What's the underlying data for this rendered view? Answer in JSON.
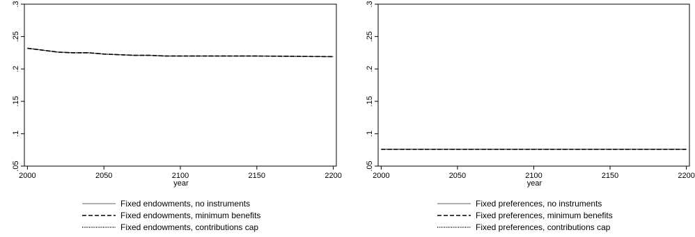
{
  "chart_data": [
    {
      "type": "line",
      "title": "",
      "xlabel": "year",
      "ylabel": "",
      "xlim": [
        1998,
        2202
      ],
      "ylim": [
        0.05,
        0.3
      ],
      "xticks": [
        2000,
        2050,
        2100,
        2150,
        2200
      ],
      "yticks": [
        0.05,
        0.1,
        0.15,
        0.2,
        0.25,
        0.3
      ],
      "yticklabels": [
        ".05",
        ".1",
        ".15",
        ".2",
        ".25",
        ".3"
      ],
      "grid": false,
      "legend_position": "bottom",
      "series": [
        {
          "name": "Fixed endowments, no instruments",
          "style": "solid",
          "color": "#808080",
          "x": [
            2000,
            2010,
            2020,
            2030,
            2040,
            2050,
            2060,
            2070,
            2080,
            2090,
            2100,
            2150,
            2200
          ],
          "y": [
            0.232,
            0.229,
            0.226,
            0.225,
            0.225,
            0.223,
            0.222,
            0.221,
            0.221,
            0.22,
            0.22,
            0.22,
            0.219
          ]
        },
        {
          "name": "Fixed endowments, minimum benefits",
          "style": "dashed",
          "color": "#000000",
          "x": [
            2000,
            2010,
            2020,
            2030,
            2040,
            2050,
            2060,
            2070,
            2080,
            2090,
            2100,
            2150,
            2200
          ],
          "y": [
            0.232,
            0.229,
            0.226,
            0.225,
            0.225,
            0.223,
            0.222,
            0.221,
            0.221,
            0.22,
            0.22,
            0.22,
            0.219
          ]
        },
        {
          "name": "Fixed endowments, contributions cap",
          "style": "dotted",
          "color": "#000000",
          "x": [
            2000,
            2010,
            2020,
            2030,
            2040,
            2050,
            2060,
            2070,
            2080,
            2090,
            2100,
            2150,
            2200
          ],
          "y": [
            0.232,
            0.229,
            0.226,
            0.225,
            0.225,
            0.223,
            0.222,
            0.221,
            0.221,
            0.22,
            0.22,
            0.22,
            0.219
          ]
        }
      ]
    },
    {
      "type": "line",
      "title": "",
      "xlabel": "year",
      "ylabel": "",
      "xlim": [
        1998,
        2202
      ],
      "ylim": [
        0.05,
        0.3
      ],
      "xticks": [
        2000,
        2050,
        2100,
        2150,
        2200
      ],
      "yticks": [
        0.05,
        0.1,
        0.15,
        0.2,
        0.25,
        0.3
      ],
      "yticklabels": [
        ".05",
        ".1",
        ".15",
        ".2",
        ".25",
        ".3"
      ],
      "grid": false,
      "legend_position": "bottom",
      "series": [
        {
          "name": "Fixed preferences, no instruments",
          "style": "solid",
          "color": "#808080",
          "x": [
            2000,
            2200
          ],
          "y": [
            0.076,
            0.076
          ]
        },
        {
          "name": "Fixed preferences, minimum benefits",
          "style": "dashed",
          "color": "#000000",
          "x": [
            2000,
            2200
          ],
          "y": [
            0.076,
            0.076
          ]
        },
        {
          "name": "Fixed preferences, contributions cap",
          "style": "dotted",
          "color": "#000000",
          "x": [
            2000,
            2200
          ],
          "y": [
            0.076,
            0.076
          ]
        }
      ]
    }
  ]
}
